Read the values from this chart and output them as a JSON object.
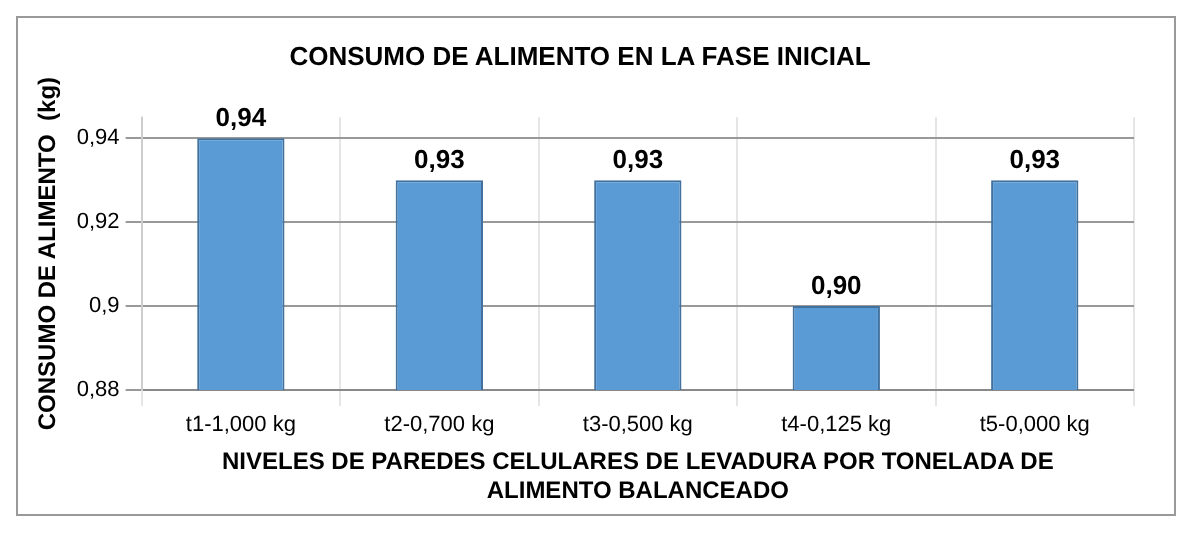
{
  "chart_data": {
    "type": "bar",
    "title": "CONSUMO DE ALIMENTO EN LA FASE INICIAL",
    "xlabel": "NIVELES DE PAREDES CELULARES DE LEVADURA POR TONELADA DE ALIMENTO BALANCEADO",
    "ylabel": "CONSUMO DE ALIMENTO  (kg)",
    "categories": [
      "t1-1,000 kg",
      "t2-0,700 kg",
      "t3-0,500 kg",
      "t4-0,125 kg",
      "t5-0,000 kg"
    ],
    "values": [
      0.94,
      0.93,
      0.93,
      0.9,
      0.93
    ],
    "value_labels": [
      "0,94",
      "0,93",
      "0,93",
      "0,90",
      "0,93"
    ],
    "color": "#5b9bd5",
    "ylim": [
      0.88,
      0.945
    ],
    "yticks": [
      {
        "value": 0.88,
        "label": "0,88"
      },
      {
        "value": 0.9,
        "label": "0,9"
      },
      {
        "value": 0.92,
        "label": "0,92"
      },
      {
        "value": 0.94,
        "label": "0,94"
      }
    ],
    "grid": true
  }
}
